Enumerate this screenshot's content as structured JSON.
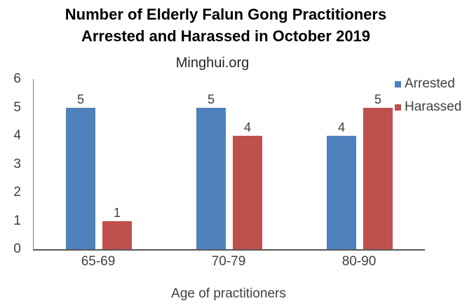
{
  "chart_data": {
    "type": "bar",
    "title": "Number of Elderly Falun Gong Practitioners Arrested and Harassed in October 2019",
    "title_lines": [
      "Number of Elderly Falun Gong Practitioners",
      "Arrested and Harassed in October 2019"
    ],
    "subtitle": "Minghui.org",
    "categories": [
      "65-69",
      "70-79",
      "80-90"
    ],
    "series": [
      {
        "name": "Arrested",
        "color": "#4F81BD",
        "values": [
          5,
          5,
          4
        ]
      },
      {
        "name": "Harassed",
        "color": "#C0504D",
        "values": [
          1,
          4,
          5
        ]
      }
    ],
    "xlabel": "Age of practitioners",
    "ylabel": "",
    "ylim": [
      0,
      6
    ],
    "yticks": [
      0,
      1,
      2,
      3,
      4,
      5,
      6
    ],
    "bar_value_labels": true,
    "legend_position": "top-right",
    "grid": false
  },
  "style": {
    "background": "#FFFFFF",
    "title_color": "#000000",
    "text_color": "#404040",
    "y_axis_color": "#7F7F7F",
    "x_axis_color": "#595959"
  }
}
